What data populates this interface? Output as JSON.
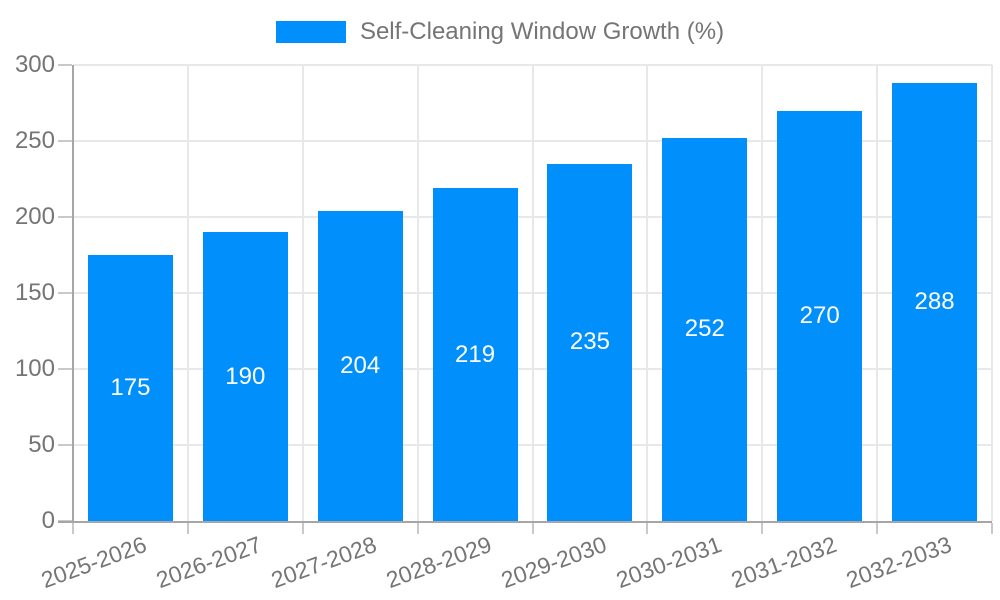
{
  "chart_data": {
    "type": "bar",
    "title": "Self-Cleaning Window Growth (%)",
    "legend": {
      "label": "Self-Cleaning Window Growth (%)",
      "position": "top"
    },
    "categories": [
      "2025-2026",
      "2026-2027",
      "2027-2028",
      "2028-2029",
      "2029-2030",
      "2030-2031",
      "2031-2032",
      "2032-2033"
    ],
    "values": [
      175,
      190,
      204,
      219,
      235,
      252,
      270,
      288
    ],
    "series": [
      {
        "name": "Self-Cleaning Window Growth (%)",
        "values": [
          175,
          190,
          204,
          219,
          235,
          252,
          270,
          288
        ]
      }
    ],
    "xlabel": "",
    "ylabel": "",
    "ylim": [
      0,
      300
    ],
    "y_ticks": [
      0,
      50,
      100,
      150,
      200,
      250,
      300
    ],
    "grid": true,
    "data_labels": "inside-center",
    "x_label_rotation_deg": -20,
    "colors": {
      "bar": "#008FFB",
      "data_label": "#ffffff",
      "axis_text": "#757575",
      "grid": "#e8e8e8",
      "axis_line": "#a6a6a6",
      "tick": "#c9c9c9",
      "background": "#ffffff"
    }
  }
}
